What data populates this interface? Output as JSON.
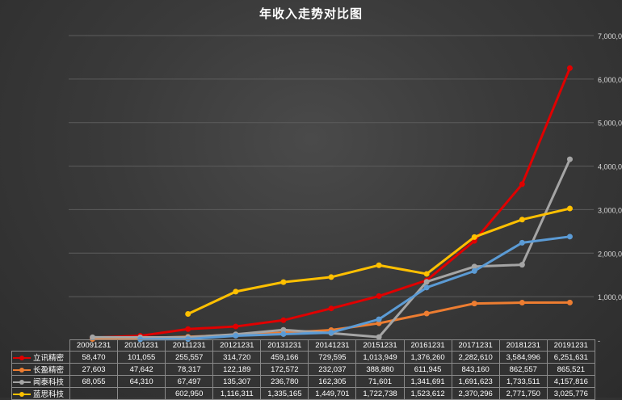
{
  "chart_data": {
    "type": "line",
    "title": "年收入走势对比图",
    "categories": [
      "20091231",
      "20101231",
      "20111231",
      "20121231",
      "20131231",
      "20141231",
      "20151231",
      "20161231",
      "20171231",
      "20181231",
      "20191231"
    ],
    "ylim": [
      0,
      7000000
    ],
    "yticks": [
      0,
      1000000,
      2000000,
      3000000,
      4000000,
      5000000,
      6000000,
      7000000
    ],
    "ytick_labels": [
      "-",
      "1,000,0",
      "2,000,0",
      "3,000,0",
      "4,000,0",
      "5,000,0",
      "6,000,0",
      "7,000,0"
    ],
    "grid": true,
    "legend": "table-bottom",
    "series": [
      {
        "name": "立讯精密",
        "color": "#e00000",
        "values": [
          58470,
          101055,
          255557,
          314720,
          459166,
          729595,
          1013949,
          1376260,
          2282610,
          3584996,
          6251631
        ],
        "labels": [
          "58,470",
          "101,055",
          "255,557",
          "314,720",
          "459,166",
          "729,595",
          "1,013,949",
          "1,376,260",
          "2,282,610",
          "3,584,996",
          "6,251,631"
        ]
      },
      {
        "name": "长盈精密",
        "color": "#ed7d31",
        "values": [
          27603,
          47642,
          78317,
          122189,
          172572,
          232037,
          388880,
          611945,
          843160,
          862557,
          865521
        ],
        "labels": [
          "27,603",
          "47,642",
          "78,317",
          "122,189",
          "172,572",
          "232,037",
          "388,880",
          "611,945",
          "843,160",
          "862,557",
          "865,521"
        ]
      },
      {
        "name": "闻泰科技",
        "color": "#a5a5a5",
        "values": [
          68055,
          64310,
          67497,
          135307,
          236780,
          162305,
          71601,
          1341691,
          1691623,
          1733511,
          4157816
        ],
        "labels": [
          "68,055",
          "64,310",
          "67,497",
          "135,307",
          "236,780",
          "162,305",
          "71,601",
          "1,341,691",
          "1,691,623",
          "1,733,511",
          "4,157,816"
        ]
      },
      {
        "name": "蓝思科技",
        "color": "#ffc000",
        "values": [
          null,
          null,
          602950,
          1116311,
          1335165,
          1449701,
          1722738,
          1523612,
          2370296,
          2771750,
          3025776
        ],
        "labels": [
          "",
          "",
          "602,950",
          "1,116,311",
          "1,335,165",
          "1,449,701",
          "1,722,738",
          "1,523,612",
          "2,370,296",
          "2,771,750",
          "3,025,776"
        ]
      },
      {
        "name": "",
        "color": "#5b9bd5",
        "values": [
          null,
          21000,
          26000,
          103000,
          140000,
          175000,
          480000,
          1210000,
          1590000,
          2240000,
          2380000
        ],
        "labels": []
      }
    ]
  }
}
